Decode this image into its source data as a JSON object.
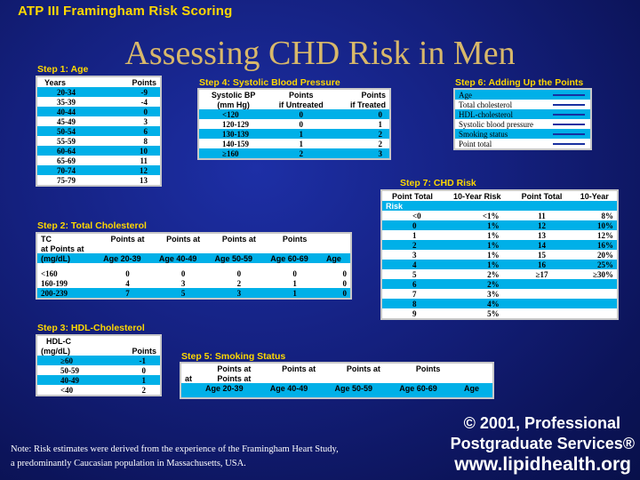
{
  "header": {
    "title": "ATP III Framingham Risk Scoring"
  },
  "slide_title": "Assessing CHD Risk in Men",
  "step1": {
    "label": "Step 1: Age",
    "headers": [
      "Years",
      "Points"
    ],
    "rows": [
      [
        "20-34",
        "-9"
      ],
      [
        "35-39",
        "-4"
      ],
      [
        "40-44",
        "0"
      ],
      [
        "45-49",
        "3"
      ],
      [
        "50-54",
        "6"
      ],
      [
        "55-59",
        "8"
      ],
      [
        "60-64",
        "10"
      ],
      [
        "65-69",
        "11"
      ],
      [
        "70-74",
        "12"
      ],
      [
        "75-79",
        "13"
      ]
    ]
  },
  "step2": {
    "label": "Step 2: Total Cholesterol",
    "h1": [
      "TC",
      "Points at",
      "Points at",
      "Points at",
      "Points",
      ""
    ],
    "h2": [
      "at Points at",
      "",
      "",
      "",
      "",
      ""
    ],
    "h3": [
      "(mg/dL)",
      "Age 20-39",
      "Age 40-49",
      "Age 50-59",
      "Age 60-69",
      "Age"
    ],
    "rows": [
      [
        "<160",
        "0",
        "0",
        "0",
        "0",
        "0"
      ],
      [
        "160-199",
        "4",
        "3",
        "2",
        "1",
        "0"
      ],
      [
        "200-239",
        "7",
        "5",
        "3",
        "1",
        "0"
      ]
    ]
  },
  "step3": {
    "label": "Step 3: HDL-Cholesterol",
    "headers": [
      "HDL-C",
      "(mg/dL)",
      "Points"
    ],
    "rows": [
      [
        "≥60",
        "-1"
      ],
      [
        "50-59",
        "0"
      ],
      [
        "40-49",
        "1"
      ],
      [
        "<40",
        "2"
      ]
    ]
  },
  "step4": {
    "label": "Step 4: Systolic Blood Pressure",
    "headers": [
      "Systolic BP",
      "(mm Hg)",
      "Points",
      "if Untreated",
      "Points",
      "if Treated"
    ],
    "rows": [
      [
        "<120",
        "0",
        "0"
      ],
      [
        "120-129",
        "0",
        "1"
      ],
      [
        "130-139",
        "1",
        "2"
      ],
      [
        "140-159",
        "1",
        "2"
      ],
      [
        "≥160",
        "2",
        "3"
      ]
    ]
  },
  "step5": {
    "label": "Step 5: Smoking Status",
    "h1": [
      "",
      "Points at",
      "Points at",
      "Points at",
      "Points"
    ],
    "h2": [
      "at",
      "Points at",
      "",
      "",
      ""
    ],
    "h3": [
      "",
      "Age 20-39",
      "Age 40-49",
      "Age 50-59",
      "Age 60-69",
      "Age"
    ]
  },
  "step6": {
    "label": "Step 6: Adding Up the Points",
    "rows": [
      "Age",
      "Total cholesterol",
      "HDL-cholesterol",
      "Systolic blood pressure",
      "Smoking status",
      "Point total"
    ]
  },
  "step7": {
    "label": "Step 7: CHD Risk",
    "headers": [
      "Point Total",
      "10-Year Risk",
      "Point Total",
      "10-Year",
      "Risk"
    ],
    "rows": [
      [
        "<0",
        "<1%",
        "11",
        "8%"
      ],
      [
        "0",
        "1%",
        "12",
        "10%"
      ],
      [
        "1",
        "1%",
        "13",
        "12%"
      ],
      [
        "2",
        "1%",
        "14",
        "16%"
      ],
      [
        "3",
        "1%",
        "15",
        "20%"
      ],
      [
        "4",
        "1%",
        "16",
        "25%"
      ],
      [
        "5",
        "2%",
        "≥17",
        "≥30%"
      ],
      [
        "6",
        "2%",
        "",
        ""
      ],
      [
        "7",
        "3%",
        "",
        ""
      ],
      [
        "8",
        "4%",
        "",
        ""
      ],
      [
        "9",
        "5%",
        "",
        ""
      ]
    ]
  },
  "note": {
    "line1": "Note: Risk estimates were derived from the experience of the Framingham Heart Study,",
    "line2": "a predominantly Caucasian population in Massachusetts, USA."
  },
  "copyright": {
    "line1": "© 2001, Professional",
    "line2": "Postgraduate Services®",
    "line3": "www.lipidhealth.org"
  }
}
